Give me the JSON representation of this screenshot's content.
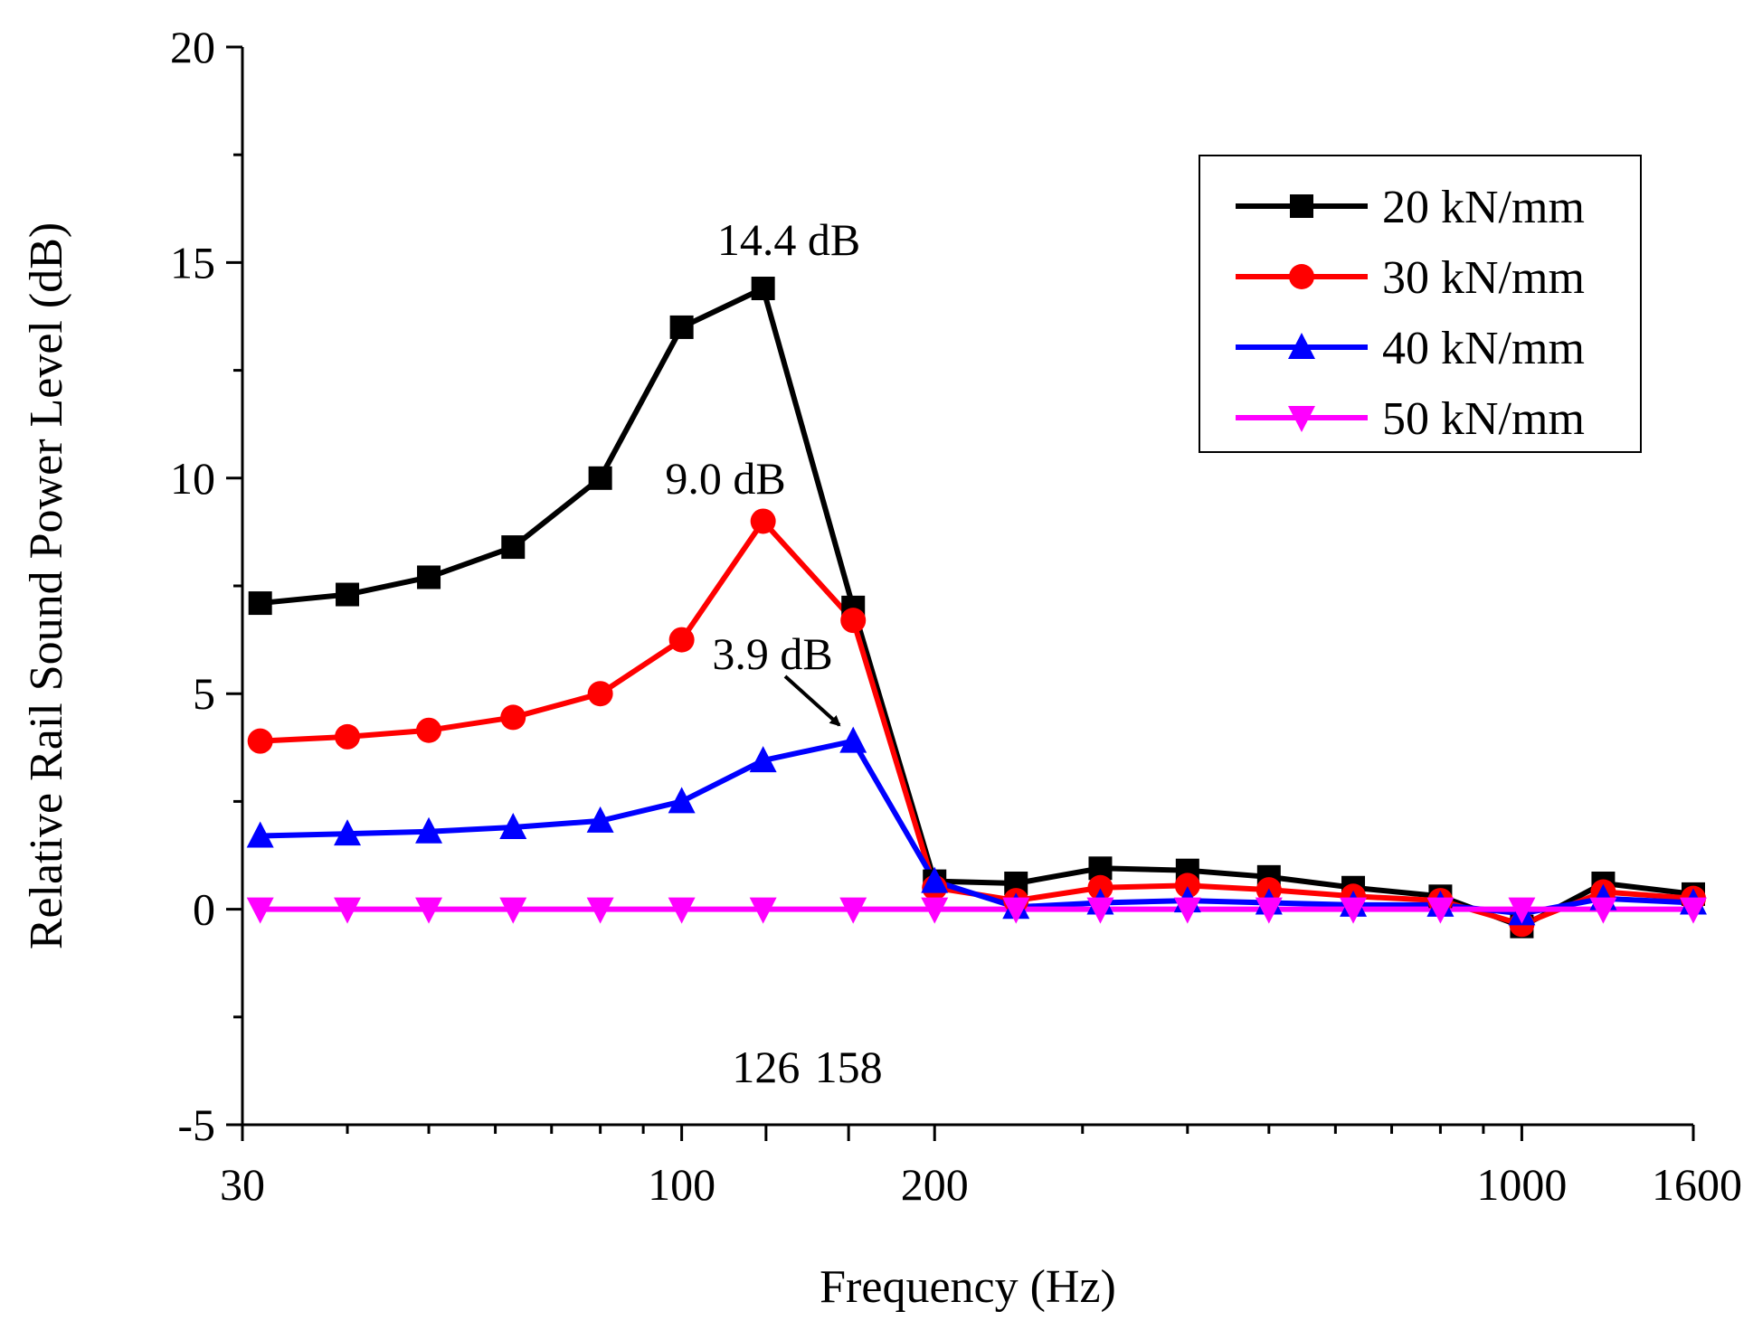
{
  "chart_data": {
    "type": "line",
    "title": "",
    "xlabel": "Frequency (Hz)",
    "ylabel": "Relative Rail Sound Power Level (dB)",
    "ylim": [
      -5,
      20
    ],
    "yticks": [
      "-5",
      "0",
      "5",
      "10",
      "15",
      "20"
    ],
    "xtick_labels": [
      "30",
      "100",
      "126",
      "158",
      "200",
      "1000",
      "1600"
    ],
    "x": [
      "31.5",
      "40",
      "50",
      "63",
      "80",
      "100",
      "125",
      "160",
      "200",
      "250",
      "315",
      "400",
      "500",
      "630",
      "800",
      "1000",
      "1250",
      "1600"
    ],
    "series": [
      {
        "name": "20 kN/mm",
        "color": "#000000",
        "marker": "square",
        "values": [
          7.1,
          7.3,
          7.7,
          8.4,
          10.0,
          13.5,
          14.4,
          7.0,
          0.65,
          0.6,
          0.95,
          0.9,
          0.75,
          0.5,
          0.3,
          -0.4,
          0.6,
          0.35
        ]
      },
      {
        "name": "30 kN/mm",
        "color": "#ff0000",
        "marker": "circle",
        "values": [
          3.9,
          4.0,
          4.15,
          4.45,
          5.0,
          6.25,
          9.0,
          6.7,
          0.5,
          0.2,
          0.5,
          0.55,
          0.45,
          0.3,
          0.2,
          -0.35,
          0.4,
          0.25
        ]
      },
      {
        "name": "40 kN/mm",
        "color": "#0000ff",
        "marker": "triangle-up",
        "values": [
          1.7,
          1.75,
          1.8,
          1.9,
          2.05,
          2.5,
          3.45,
          3.9,
          0.65,
          0.05,
          0.15,
          0.2,
          0.15,
          0.1,
          0.1,
          -0.1,
          0.25,
          0.15
        ]
      },
      {
        "name": "50 kN/mm",
        "color": "#ff00ff",
        "marker": "triangle-down",
        "values": [
          0,
          0,
          0,
          0,
          0,
          0,
          0,
          0,
          0,
          0,
          0,
          0,
          0,
          0,
          0,
          0,
          0,
          0
        ]
      }
    ],
    "annotations": [
      {
        "text": "14.4 dB",
        "series": 0,
        "point": 6
      },
      {
        "text": "9.0 dB",
        "series": 1,
        "point": 6
      },
      {
        "text": "3.9 dB",
        "series": 2,
        "point": 7
      }
    ],
    "legend": "top-right"
  }
}
